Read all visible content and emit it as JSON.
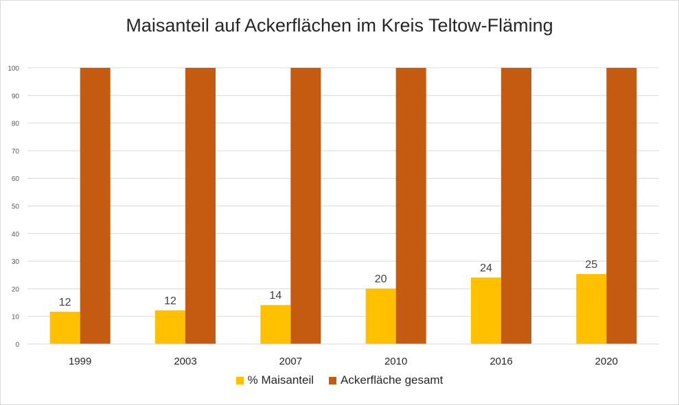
{
  "chart_data": {
    "type": "bar",
    "title": "Maisanteil auf Ackerflächen im Kreis Teltow-Fläming",
    "categories": [
      "1999",
      "2003",
      "2007",
      "2010",
      "2016",
      "2020"
    ],
    "series": [
      {
        "name": "% Maisanteil",
        "color": "#FFC000",
        "values": [
          11.7,
          12.2,
          14.1,
          20.1,
          24.1,
          25.3
        ],
        "labels": [
          "12",
          "12",
          "14",
          "20",
          "24",
          "25"
        ]
      },
      {
        "name": "Ackerfläche gesamt",
        "color": "#C55A11",
        "values": [
          100,
          100,
          100,
          100,
          100,
          100
        ]
      }
    ],
    "ylim": [
      0,
      100
    ],
    "yticks": [
      0,
      10,
      20,
      30,
      40,
      50,
      60,
      70,
      80,
      90,
      100
    ],
    "grid": true,
    "legend": "bottom",
    "xlabel": "",
    "ylabel": ""
  }
}
